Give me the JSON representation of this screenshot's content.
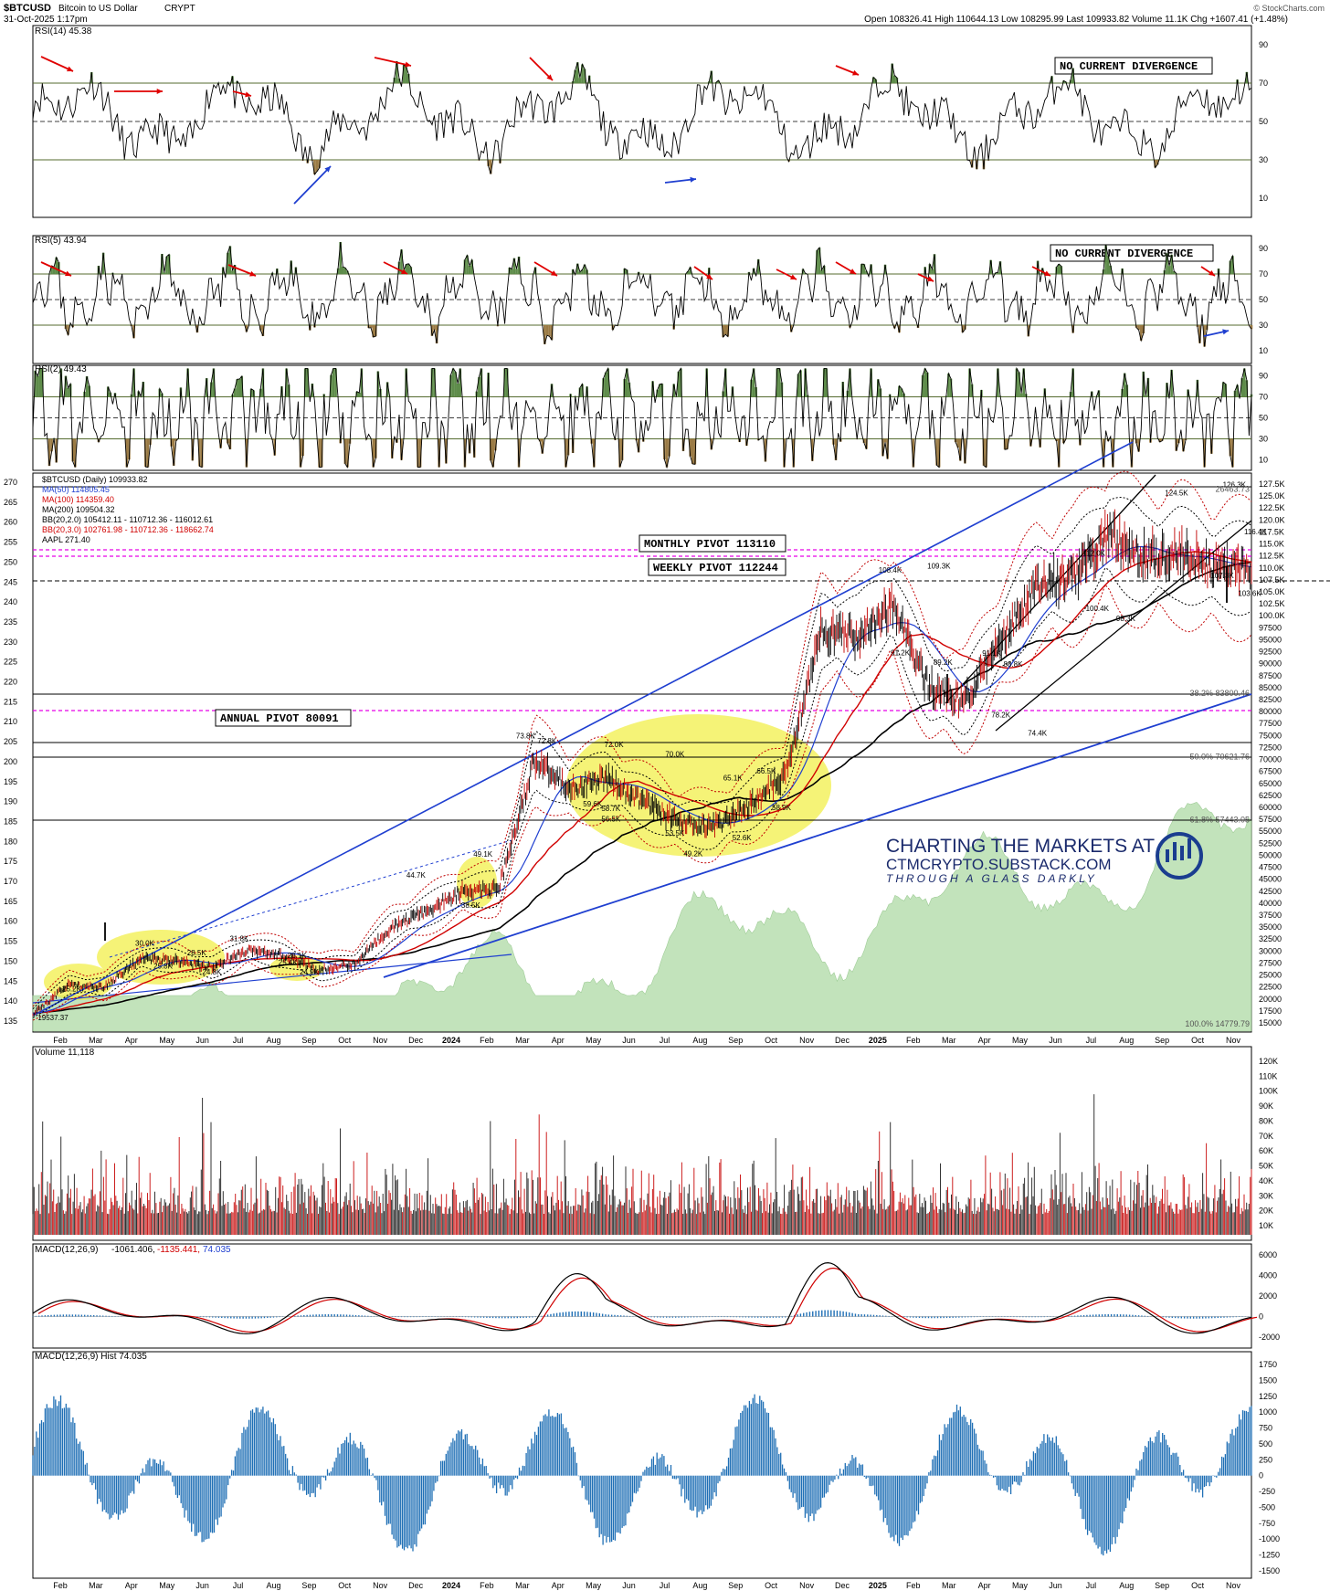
{
  "header": {
    "symbol": "$BTCUSD",
    "name": "Bitcoin to US Dollar",
    "type": "CRYPT",
    "date": "31-Oct-2025 1:17pm",
    "quote": "Open 108326.41  High 110644.13  Low 108295.99  Last 109933.82  Volume 11.1K  Chg +1607.41 (+1.48%)",
    "brand": "© StockCharts.com"
  },
  "x_axis_labels": [
    "Feb",
    "Mar",
    "Apr",
    "May",
    "Jun",
    "Jul",
    "Aug",
    "Sep",
    "Oct",
    "Nov",
    "Dec",
    "2024",
    "Feb",
    "Mar",
    "Apr",
    "May",
    "Jun",
    "Jul",
    "Aug",
    "Sep",
    "Oct",
    "Nov",
    "Dec",
    "2025",
    "Feb",
    "Mar",
    "Apr",
    "May",
    "Jun",
    "Jul",
    "Aug",
    "Sep",
    "Oct",
    "Nov"
  ],
  "rsi14": {
    "title": "RSI(14) 45.38",
    "ticks": [
      "90",
      "70",
      "50",
      "30",
      "10"
    ],
    "note": "NO CURRENT DIVERGENCE"
  },
  "rsi5": {
    "title": "RSI(5) 43.94",
    "ticks": [
      "90",
      "70",
      "50",
      "30",
      "10"
    ],
    "note": "NO CURRENT DIVERGENCE"
  },
  "rsi2": {
    "title": "RSI(2) 49.43",
    "ticks": [
      "90",
      "70",
      "50",
      "30",
      "10"
    ]
  },
  "price_panel": {
    "legend": [
      {
        "text": "$BTCUSD (Daily) 109933.82",
        "color": "#000000"
      },
      {
        "text": "MA(50) 114805.45",
        "color": "#1f3fd0"
      },
      {
        "text": "MA(100) 114359.40",
        "color": "#d00000"
      },
      {
        "text": "MA(200) 109504.32",
        "color": "#000000"
      },
      {
        "text": "BB(20,2.0) 105412.11 - 110712.36 - 116012.61",
        "color": "#000000"
      },
      {
        "text": "BB(20,3.0) 102761.98 - 110712.36 - 118662.74",
        "color": "#d00000"
      },
      {
        "text": "AAPL 271.40",
        "color": "#000000"
      }
    ],
    "left_ticks": [
      "270",
      "265",
      "260",
      "255",
      "250",
      "245",
      "240",
      "235",
      "230",
      "225",
      "220",
      "215",
      "210",
      "205",
      "200",
      "195",
      "190",
      "185",
      "180",
      "175",
      "170",
      "165",
      "160",
      "155",
      "150",
      "145",
      "140",
      "135"
    ],
    "right_ticks": [
      "127.5K",
      "125.0K",
      "122.5K",
      "120.0K",
      "117.5K",
      "115.0K",
      "112.5K",
      "110.0K",
      "107.5K",
      "105.0K",
      "102.5K",
      "100.0K",
      "97500",
      "95000",
      "92500",
      "90000",
      "87500",
      "85000",
      "82500",
      "80000",
      "77500",
      "75000",
      "72500",
      "70000",
      "67500",
      "65000",
      "62500",
      "60000",
      "57500",
      "55000",
      "52500",
      "50000",
      "47500",
      "45000",
      "42500",
      "40000",
      "37500",
      "35000",
      "32500",
      "30000",
      "27500",
      "25000",
      "22500",
      "20000",
      "17500",
      "15000"
    ],
    "fib_labels": [
      {
        "text": "26463.73",
        "price": 126463
      },
      {
        "text": "38.2% 83800.46",
        "price": 83800
      },
      {
        "text": "50.0% 70621.76",
        "price": 70621
      },
      {
        "text": "61.8% 57443.05",
        "price": 57443
      },
      {
        "text": "100.0% 14779.79",
        "price": 14780
      }
    ],
    "pivots": {
      "monthly": "MONTHLY PIVOT 113110",
      "weekly": "WEEKLY PIVOT 112244",
      "annual": "ANNUAL PIVOT 80091"
    },
    "annotations": [
      "19537.37",
      "25.2K",
      "30.0K",
      "28.5K",
      "25.8K",
      "24.8K",
      "31.8K",
      "28.1K",
      "25.4K",
      "24.9K",
      "44.7K",
      "49.1K",
      "38.5K",
      "73.8K",
      "72.8K",
      "72.0K",
      "70.0K",
      "66.5K",
      "65.1K",
      "59.6K",
      "58.7K",
      "56.5K",
      "53.5K",
      "52.6K",
      "49.2K",
      "58.9K",
      "108.4K",
      "109.3K",
      "91.2K",
      "89.2K",
      "91.1K",
      "88.8K",
      "78.2K",
      "74.4K",
      "112.0K",
      "100.4K",
      "98.3K",
      "124.5K",
      "126.3K",
      "116.4K",
      "107.3K",
      "103.6K"
    ],
    "watermark": {
      "line1": "CHARTING THE MARKETS AT",
      "line2": "CTMCRYPTO.SUBSTACK.COM",
      "line3": "THROUGH A GLASS DARKLY"
    }
  },
  "volume": {
    "title": "Volume 11,118",
    "ticks": [
      "120K",
      "110K",
      "100K",
      "90K",
      "80K",
      "70K",
      "60K",
      "50K",
      "40K",
      "30K",
      "20K",
      "10K"
    ]
  },
  "macd": {
    "title_a": "MACD(12,26,9)",
    "title_b": "-1061.406,",
    "title_c": "-1135.441,",
    "title_d": "74.035",
    "ticks": [
      "6000",
      "4000",
      "2000",
      "0",
      "-2000"
    ]
  },
  "macd_hist": {
    "title": "MACD(12,26,9) Hist 74.035",
    "ticks": [
      "1750",
      "1500",
      "1250",
      "1000",
      "750",
      "500",
      "250",
      "0",
      "-250",
      "-500",
      "-750",
      "-1000",
      "-1250",
      "-1500"
    ]
  },
  "chart_data": {
    "type": "line",
    "title": "$BTCUSD Bitcoin to US Dollar CRYPT",
    "x_range": [
      "2023-01",
      "2025-10-31"
    ],
    "ylim": [
      15000,
      127500
    ],
    "series": [
      {
        "name": "$BTCUSD (Daily)",
        "x": [
          "2023-01",
          "2023-03",
          "2023-04",
          "2023-06",
          "2023-07",
          "2023-08",
          "2023-10",
          "2023-11",
          "2023-12",
          "2024-01",
          "2024-03",
          "2024-04",
          "2024-05",
          "2024-06",
          "2024-07",
          "2024-08",
          "2024-09",
          "2024-10",
          "2024-11",
          "2024-12",
          "2025-01",
          "2025-02",
          "2025-03",
          "2025-04",
          "2025-05",
          "2025-06",
          "2025-07",
          "2025-08",
          "2025-09",
          "2025-10",
          "2025-10-31"
        ],
        "y": [
          20000,
          22000,
          29000,
          26500,
          30000,
          29000,
          27500,
          35000,
          42000,
          42500,
          70000,
          62000,
          65000,
          62000,
          58000,
          55000,
          57000,
          62000,
          90000,
          97000,
          102000,
          97000,
          84000,
          78000,
          103000,
          105000,
          118000,
          115000,
          112000,
          112000,
          109933
        ]
      },
      {
        "name": "MA(200)",
        "x": [
          "2023-01",
          "2023-06",
          "2023-12",
          "2024-06",
          "2024-12",
          "2025-06",
          "2025-10-31"
        ],
        "y": [
          18000,
          23000,
          30000,
          48000,
          66000,
          92000,
          109504
        ]
      }
    ],
    "levels": {
      "monthly_pivot": 113110,
      "weekly_pivot": 112244,
      "annual_pivot": 80091
    },
    "last": {
      "open": 108326.41,
      "high": 110644.13,
      "low": 108295.99,
      "close": 109933.82,
      "volume": "11.1K",
      "change": 1607.41,
      "change_pct": 1.48
    }
  }
}
